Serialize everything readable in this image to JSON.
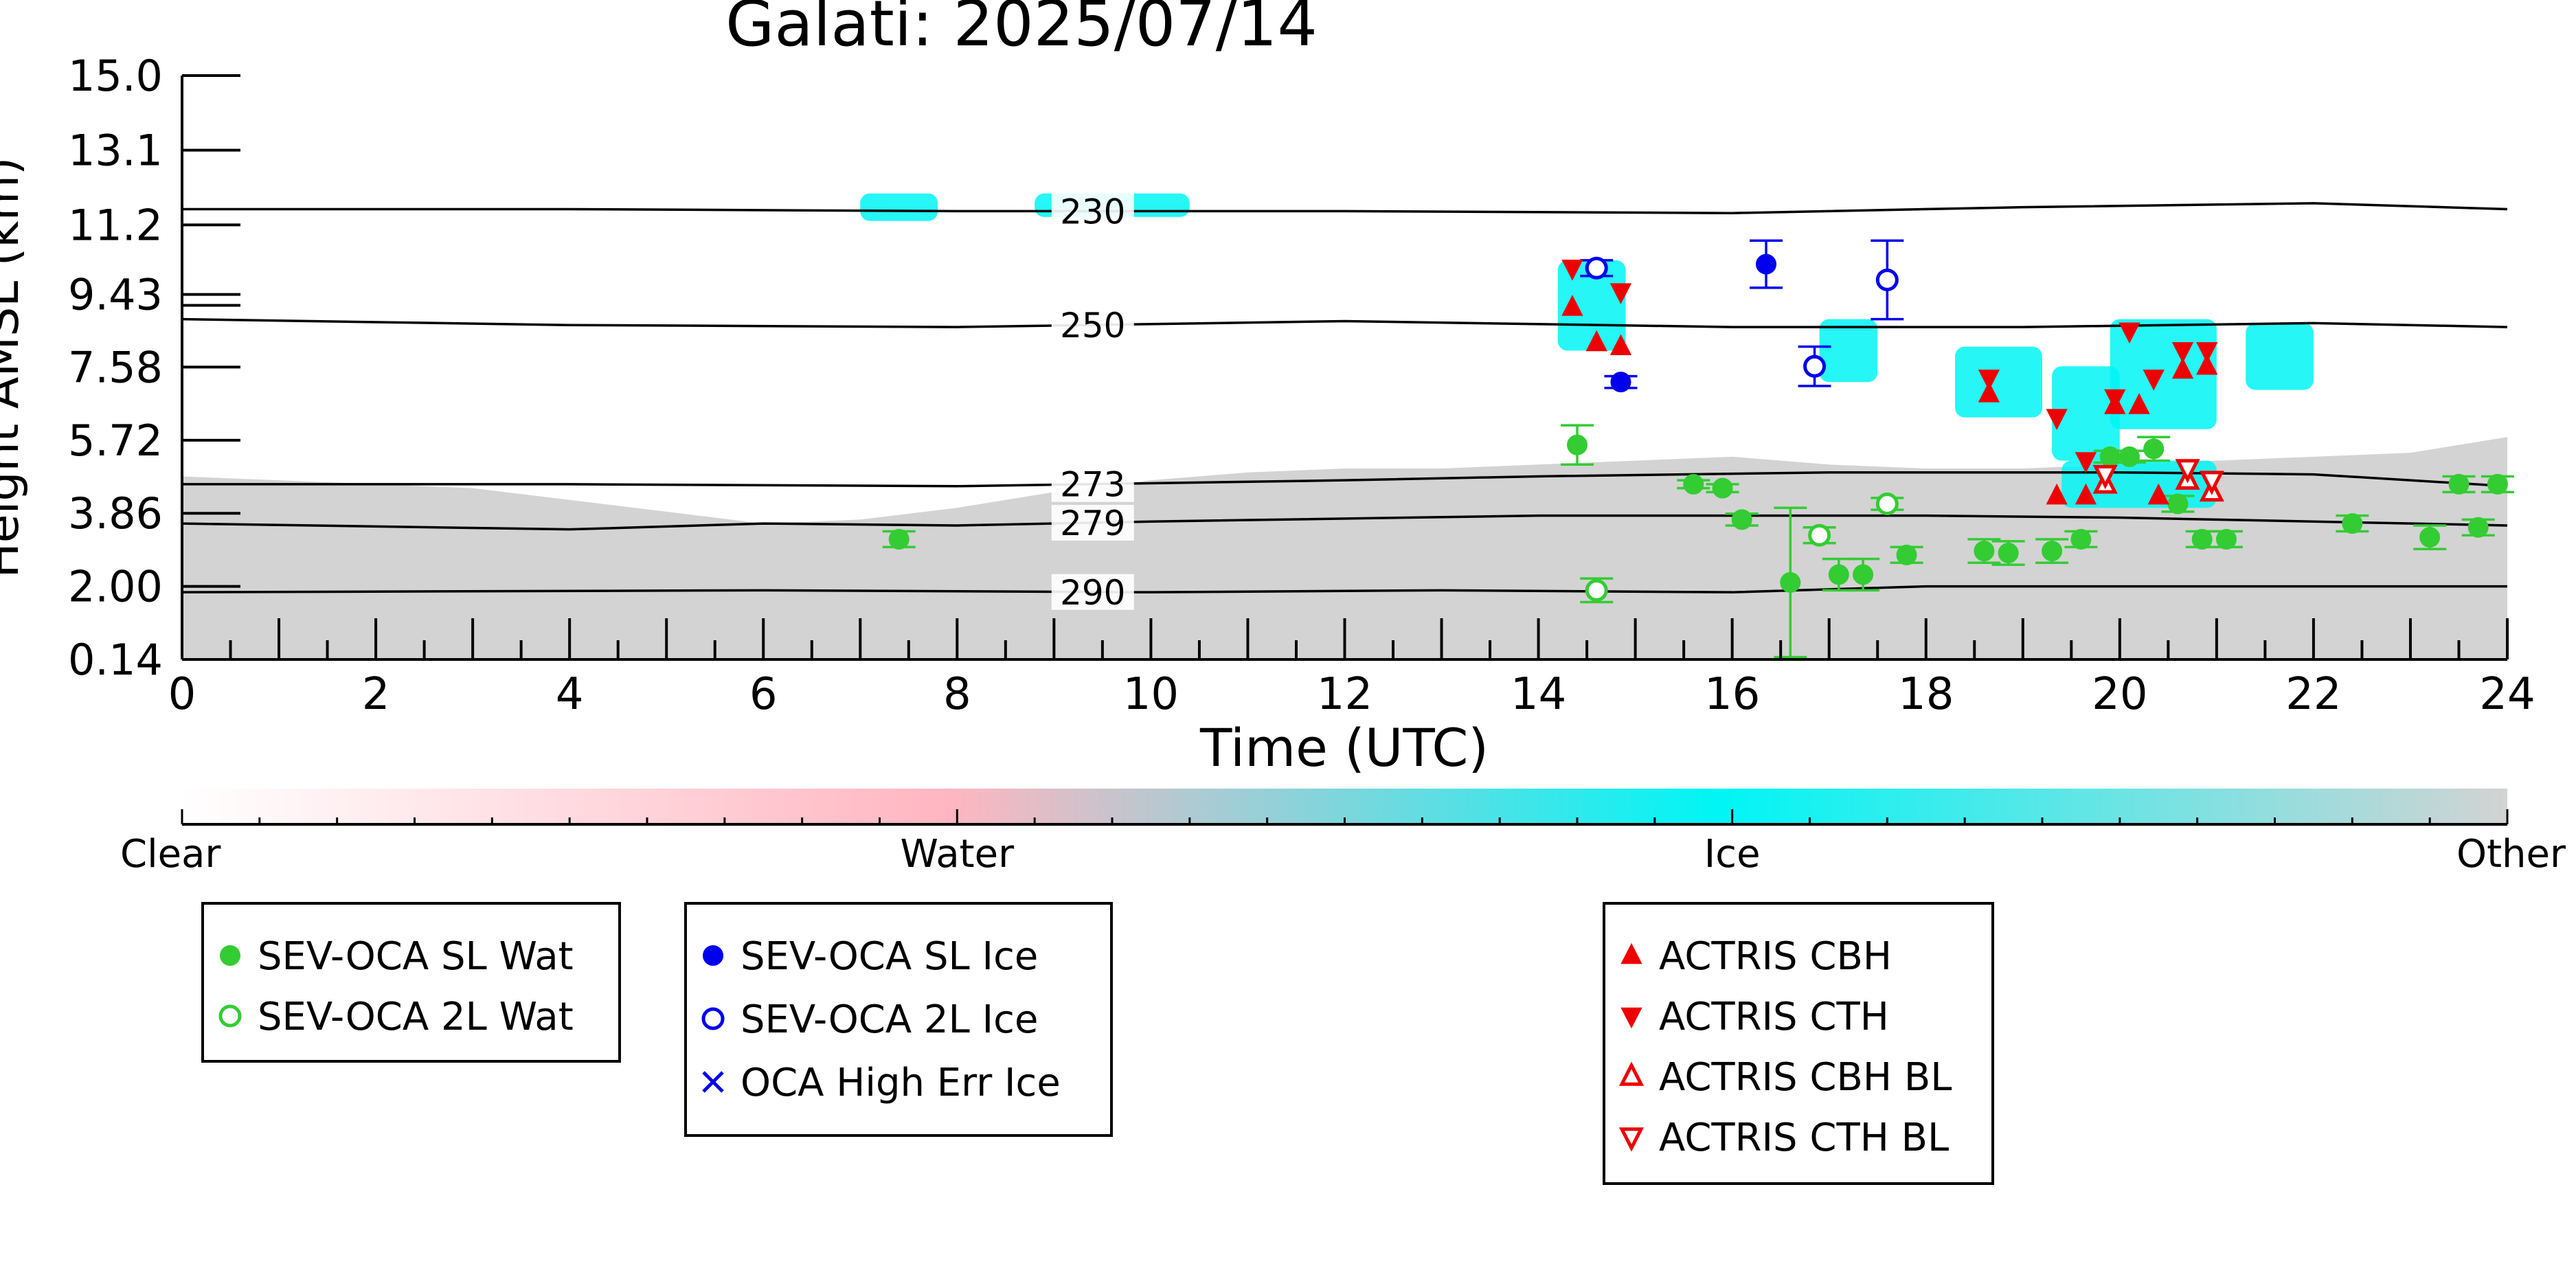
{
  "chart_data": {
    "type": "scatter",
    "title": "Galati: 2025/07/14",
    "xlabel": "Time (UTC)",
    "ylabel": "Height AMSL (km)",
    "xlim": [
      0,
      24
    ],
    "ylim": [
      0.14,
      15.0
    ],
    "x_ticks": [
      "0",
      "2",
      "4",
      "6",
      "8",
      "10",
      "12",
      "14",
      "16",
      "18",
      "20",
      "22",
      "24"
    ],
    "y_ticks": [
      "0.14",
      "2.00",
      "3.86",
      "5.72",
      "7.58",
      "9.43",
      "11.2",
      "13.1",
      "15.0"
    ],
    "grid": false,
    "background_classification": {
      "colorbar_labels": [
        "Clear",
        "Water",
        "Ice",
        "Other"
      ],
      "colors": {
        "clear": "#ffffff",
        "water": "#ffb6c1",
        "ice": "#00f5f5",
        "other": "#d3d3d3"
      },
      "other_layer_top_km": [
        [
          0,
          4.8
        ],
        [
          1,
          4.7
        ],
        [
          2,
          4.6
        ],
        [
          3,
          4.5
        ],
        [
          4,
          4.2
        ],
        [
          5,
          3.9
        ],
        [
          6,
          3.6
        ],
        [
          7,
          3.7
        ],
        [
          8,
          4.0
        ],
        [
          9,
          4.4
        ],
        [
          10,
          4.7
        ],
        [
          11,
          4.9
        ],
        [
          12,
          5.0
        ],
        [
          13,
          5.0
        ],
        [
          14,
          5.1
        ],
        [
          15,
          5.2
        ],
        [
          16,
          5.3
        ],
        [
          17,
          5.1
        ],
        [
          18,
          5.0
        ],
        [
          19,
          5.0
        ],
        [
          20,
          5.1
        ],
        [
          21,
          5.2
        ],
        [
          22,
          5.3
        ],
        [
          23,
          5.4
        ],
        [
          24,
          5.8
        ]
      ],
      "ice_patches": [
        {
          "x": [
            7.0,
            7.8
          ],
          "y": [
            11.3,
            12.0
          ]
        },
        {
          "x": [
            8.8,
            10.4
          ],
          "y": [
            11.4,
            12.0
          ]
        },
        {
          "x": [
            14.2,
            14.9
          ],
          "y": [
            8.0,
            10.3
          ]
        },
        {
          "x": [
            16.9,
            17.5
          ],
          "y": [
            7.2,
            8.8
          ]
        },
        {
          "x": [
            18.3,
            19.2
          ],
          "y": [
            6.3,
            8.1
          ]
        },
        {
          "x": [
            19.3,
            20.0
          ],
          "y": [
            5.2,
            7.6
          ]
        },
        {
          "x": [
            19.9,
            21.0
          ],
          "y": [
            6.0,
            8.8
          ]
        },
        {
          "x": [
            21.3,
            22.0
          ],
          "y": [
            7.0,
            8.7
          ]
        },
        {
          "x": [
            19.4,
            21.0
          ],
          "y": [
            4.0,
            5.2
          ]
        }
      ]
    },
    "temperature_contours": [
      {
        "label": "230",
        "points": [
          [
            0,
            11.6
          ],
          [
            4,
            11.6
          ],
          [
            8,
            11.55
          ],
          [
            12,
            11.55
          ],
          [
            16,
            11.5
          ],
          [
            19,
            11.65
          ],
          [
            22,
            11.75
          ],
          [
            24,
            11.6
          ]
        ]
      },
      {
        "label": "250",
        "points": [
          [
            0,
            8.8
          ],
          [
            4,
            8.65
          ],
          [
            8,
            8.6
          ],
          [
            12,
            8.75
          ],
          [
            16,
            8.6
          ],
          [
            19,
            8.6
          ],
          [
            22,
            8.7
          ],
          [
            24,
            8.6
          ]
        ]
      },
      {
        "label": "273",
        "points": [
          [
            0,
            4.6
          ],
          [
            4,
            4.6
          ],
          [
            8,
            4.55
          ],
          [
            12,
            4.7
          ],
          [
            14,
            4.8
          ],
          [
            17,
            4.9
          ],
          [
            20,
            4.9
          ],
          [
            22,
            4.85
          ],
          [
            24,
            4.55
          ]
        ]
      },
      {
        "label": "279",
        "points": [
          [
            0,
            3.6
          ],
          [
            4,
            3.45
          ],
          [
            6,
            3.6
          ],
          [
            8,
            3.55
          ],
          [
            10,
            3.65
          ],
          [
            14,
            3.8
          ],
          [
            18,
            3.8
          ],
          [
            20,
            3.75
          ],
          [
            24,
            3.55
          ]
        ]
      },
      {
        "label": "290",
        "points": [
          [
            0,
            1.85
          ],
          [
            6,
            1.9
          ],
          [
            10,
            1.85
          ],
          [
            13,
            1.9
          ],
          [
            16,
            1.85
          ],
          [
            18,
            2.0
          ],
          [
            20,
            2.0
          ],
          [
            24,
            2.0
          ]
        ]
      }
    ],
    "contour_label_x": 9.4,
    "series": [
      {
        "name": "SEV-OCA SL Wat",
        "marker": "filled-circle",
        "color": "#33cc33",
        "points": [
          [
            7.4,
            3.2,
            0.2
          ],
          [
            14.4,
            5.6,
            0.5
          ],
          [
            15.6,
            4.6,
            0.1
          ],
          [
            15.9,
            4.5,
            0.1
          ],
          [
            16.1,
            3.7,
            0.15
          ],
          [
            16.6,
            2.1,
            1.9
          ],
          [
            17.1,
            2.3,
            0.4
          ],
          [
            17.35,
            2.3,
            0.4
          ],
          [
            17.8,
            2.8,
            0.2
          ],
          [
            18.6,
            2.9,
            0.3
          ],
          [
            18.85,
            2.85,
            0.3
          ],
          [
            19.3,
            2.9,
            0.3
          ],
          [
            19.6,
            3.2,
            0.2
          ],
          [
            19.9,
            5.3,
            0.15
          ],
          [
            20.1,
            5.3,
            0.15
          ],
          [
            20.35,
            5.5,
            0.3
          ],
          [
            20.6,
            4.1,
            0.2
          ],
          [
            20.85,
            3.2,
            0.2
          ],
          [
            21.1,
            3.2,
            0.2
          ],
          [
            22.4,
            3.6,
            0.2
          ],
          [
            23.2,
            3.25,
            0.3
          ],
          [
            23.5,
            4.6,
            0.2
          ],
          [
            23.7,
            3.5,
            0.2
          ],
          [
            23.9,
            4.6,
            0.2
          ]
        ]
      },
      {
        "name": "SEV-OCA 2L Wat",
        "marker": "open-circle",
        "color": "#33cc33",
        "points": [
          [
            14.6,
            1.9,
            0.3
          ],
          [
            16.9,
            3.3,
            0.2
          ],
          [
            17.6,
            4.1,
            0.15
          ]
        ]
      },
      {
        "name": "SEV-OCA SL Ice",
        "marker": "filled-circle",
        "color": "#0000ee",
        "points": [
          [
            14.85,
            7.2,
            0.15
          ],
          [
            16.35,
            10.2,
            0.6
          ]
        ]
      },
      {
        "name": "SEV-OCA 2L Ice",
        "marker": "open-circle",
        "color": "#0000ee",
        "points": [
          [
            14.6,
            10.1,
            0.2
          ],
          [
            16.85,
            7.6,
            0.5
          ],
          [
            17.6,
            9.8,
            1.0
          ]
        ]
      },
      {
        "name": "OCA High Err Ice",
        "marker": "x",
        "color": "#0000ee",
        "points": []
      },
      {
        "name": "ACTRIS CBH",
        "marker": "filled-triangle-up",
        "color": "#ee0000",
        "points": [
          [
            14.35,
            9.1
          ],
          [
            14.6,
            8.2
          ],
          [
            14.85,
            8.1
          ],
          [
            18.65,
            6.9
          ],
          [
            19.35,
            4.3
          ],
          [
            19.65,
            4.3
          ],
          [
            19.95,
            6.6
          ],
          [
            20.2,
            6.6
          ],
          [
            20.4,
            4.3
          ],
          [
            20.65,
            7.5
          ],
          [
            20.9,
            7.6
          ]
        ]
      },
      {
        "name": "ACTRIS CTH",
        "marker": "filled-triangle-down",
        "color": "#ee0000",
        "points": [
          [
            14.35,
            10.1
          ],
          [
            14.85,
            9.5
          ],
          [
            18.65,
            7.3
          ],
          [
            19.35,
            6.3
          ],
          [
            19.65,
            5.2
          ],
          [
            19.95,
            6.8
          ],
          [
            20.1,
            8.5
          ],
          [
            20.35,
            7.3
          ],
          [
            20.65,
            8.0
          ],
          [
            20.9,
            8.0
          ]
        ]
      },
      {
        "name": "ACTRIS CBH BL",
        "marker": "open-triangle-up",
        "color": "#ee0000",
        "points": [
          [
            19.85,
            4.6
          ],
          [
            20.7,
            4.7
          ],
          [
            20.95,
            4.4
          ]
        ]
      },
      {
        "name": "ACTRIS CTH BL",
        "marker": "open-triangle-down",
        "color": "#ee0000",
        "points": [
          [
            19.85,
            4.85
          ],
          [
            20.7,
            5.0
          ],
          [
            20.95,
            4.7
          ]
        ]
      }
    ]
  },
  "legend": {
    "box1": [
      {
        "label": "SEV-OCA SL Wat",
        "marker": "filled-circle",
        "color": "#33cc33"
      },
      {
        "label": "SEV-OCA 2L Wat",
        "marker": "open-circle",
        "color": "#33cc33"
      }
    ],
    "box2": [
      {
        "label": "SEV-OCA SL Ice",
        "marker": "filled-circle",
        "color": "#0000ee"
      },
      {
        "label": "SEV-OCA 2L Ice",
        "marker": "open-circle",
        "color": "#0000ee"
      },
      {
        "label": "OCA High Err Ice",
        "marker": "x",
        "color": "#0000ee"
      }
    ],
    "box3": [
      {
        "label": "ACTRIS CBH",
        "marker": "filled-triangle-up",
        "color": "#ee0000"
      },
      {
        "label": "ACTRIS CTH",
        "marker": "filled-triangle-down",
        "color": "#ee0000"
      },
      {
        "label": "ACTRIS CBH BL",
        "marker": "open-triangle-up",
        "color": "#ee0000"
      },
      {
        "label": "ACTRIS CTH BL",
        "marker": "open-triangle-down",
        "color": "#ee0000"
      }
    ]
  }
}
